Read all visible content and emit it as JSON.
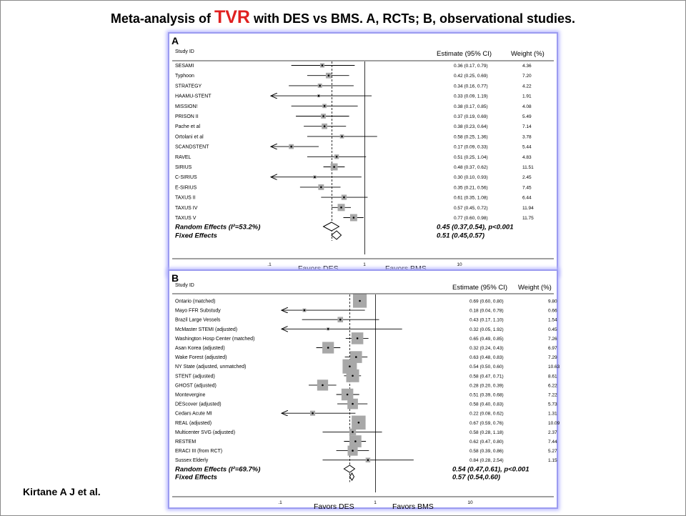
{
  "title": {
    "prefix": "Meta-analysis of ",
    "highlight": "TVR",
    "suffix": " with DES vs BMS. A, RCTs; B, observational studies."
  },
  "footer": {
    "author": "Kirtane A J et al."
  },
  "colors": {
    "highlight": "#e02020",
    "panel_border": "#9b9bf0",
    "box": "#a8a8a8"
  },
  "chart_data": [
    {
      "type": "forest",
      "panel_label": "A",
      "col_study": "Study ID",
      "col_estimate": "Estimate (95% CI)",
      "col_weight": "Weight (%)",
      "scale": "log",
      "ticks": [
        {
          "v": 0.1,
          "label": ".1"
        },
        {
          "v": 1,
          "label": "1"
        },
        {
          "v": 10,
          "label": "10"
        }
      ],
      "favors_left": "Favors DES",
      "favors_right": "Favors BMS",
      "studies": [
        {
          "name": "SESAMI",
          "est": 0.36,
          "lo": 0.17,
          "hi": 0.79,
          "text": "0.36 (0.17, 0.79)",
          "weight": "4.36"
        },
        {
          "name": "Typhoon",
          "est": 0.42,
          "lo": 0.25,
          "hi": 0.69,
          "text": "0.42 (0.25, 0.69)",
          "weight": "7.20"
        },
        {
          "name": "STRATEGY",
          "est": 0.34,
          "lo": 0.16,
          "hi": 0.77,
          "text": "0.34 (0.16, 0.77)",
          "weight": "4.22"
        },
        {
          "name": "HAAMU-STENT",
          "est": 0.33,
          "lo": 0.09,
          "hi": 1.19,
          "text": "0.33 (0.09, 1.19)",
          "weight": "1.91"
        },
        {
          "name": "MISSION!",
          "est": 0.38,
          "lo": 0.17,
          "hi": 0.85,
          "text": "0.38 (0.17, 0.85)",
          "weight": "4.08"
        },
        {
          "name": "PRISON II",
          "est": 0.37,
          "lo": 0.19,
          "hi": 0.69,
          "text": "0.37 (0.19, 0.69)",
          "weight": "5.49"
        },
        {
          "name": "Pache et al",
          "est": 0.38,
          "lo": 0.23,
          "hi": 0.64,
          "text": "0.38 (0.23, 0.64)",
          "weight": "7.14"
        },
        {
          "name": "Ortolani et al",
          "est": 0.58,
          "lo": 0.25,
          "hi": 1.36,
          "text": "0.58 (0.25, 1.36)",
          "weight": "3.78"
        },
        {
          "name": "SCANDSTENT",
          "est": 0.17,
          "lo": 0.09,
          "hi": 0.33,
          "text": "0.17 (0.09, 0.33)",
          "weight": "5.44"
        },
        {
          "name": "RAVEL",
          "est": 0.51,
          "lo": 0.25,
          "hi": 1.04,
          "text": "0.51 (0.25, 1.04)",
          "weight": "4.83"
        },
        {
          "name": "SIRIUS",
          "est": 0.48,
          "lo": 0.37,
          "hi": 0.62,
          "text": "0.48 (0.37, 0.62)",
          "weight": "11.51"
        },
        {
          "name": "C-SIRIUS",
          "est": 0.3,
          "lo": 0.1,
          "hi": 0.93,
          "text": "0.30 (0.10, 0.93)",
          "weight": "2.45"
        },
        {
          "name": "E-SIRIUS",
          "est": 0.35,
          "lo": 0.21,
          "hi": 0.56,
          "text": "0.35 (0.21, 0.56)",
          "weight": "7.45"
        },
        {
          "name": "TAXUS II",
          "est": 0.61,
          "lo": 0.35,
          "hi": 1.08,
          "text": "0.61 (0.35, 1.08)",
          "weight": "6.44"
        },
        {
          "name": "TAXUS IV",
          "est": 0.57,
          "lo": 0.45,
          "hi": 0.72,
          "text": "0.57 (0.45, 0.72)",
          "weight": "11.94"
        },
        {
          "name": "TAXUS V",
          "est": 0.77,
          "lo": 0.6,
          "hi": 0.98,
          "text": "0.77 (0.60, 0.98)",
          "weight": "11.75"
        }
      ],
      "summaries": [
        {
          "name": "Random Effects (I²=53.2%)",
          "est": 0.45,
          "lo": 0.37,
          "hi": 0.54,
          "text": "0.45 (0.37,0.54), p<0.001"
        },
        {
          "name": "Fixed Effects",
          "est": 0.51,
          "lo": 0.45,
          "hi": 0.57,
          "text": "0.51 (0.45,0.57)"
        }
      ]
    },
    {
      "type": "forest",
      "panel_label": "B",
      "col_study": "Study ID",
      "col_estimate": "Estimate (95% CI)",
      "col_weight": "Weight (%)",
      "scale": "log",
      "ticks": [
        {
          "v": 0.1,
          "label": ".1"
        },
        {
          "v": 1,
          "label": "1"
        },
        {
          "v": 10,
          "label": "10"
        }
      ],
      "favors_left": "Favors DES",
      "favors_right": "Favors BMS",
      "studies": [
        {
          "name": "Ontario (matched)",
          "est": 0.69,
          "lo": 0.6,
          "hi": 0.8,
          "text": "0.69 (0.60, 0.80)",
          "weight": "9.80"
        },
        {
          "name": "Mayo FFR Substudy",
          "est": 0.18,
          "lo": 0.04,
          "hi": 0.78,
          "text": "0.18 (0.04, 0.78)",
          "weight": "0.66"
        },
        {
          "name": "Brazil Large Vessels",
          "est": 0.43,
          "lo": 0.17,
          "hi": 1.1,
          "text": "0.43 (0.17, 1.10)",
          "weight": "1.54"
        },
        {
          "name": "McMaster STEMI (adjusted)",
          "est": 0.32,
          "lo": 0.05,
          "hi": 1.92,
          "text": "0.32 (0.05, 1.92)",
          "weight": "0.45"
        },
        {
          "name": "Washington Hosp Center (matched)",
          "est": 0.65,
          "lo": 0.49,
          "hi": 0.85,
          "text": "0.65 (0.49, 0.85)",
          "weight": "7.26"
        },
        {
          "name": "Asan Korea (adjusted)",
          "est": 0.32,
          "lo": 0.24,
          "hi": 0.43,
          "text": "0.32 (0.24, 0.43)",
          "weight": "6.97"
        },
        {
          "name": "Wake Forest (adjusted)",
          "est": 0.63,
          "lo": 0.48,
          "hi": 0.83,
          "text": "0.63 (0.48, 0.83)",
          "weight": "7.29"
        },
        {
          "name": "NY State (adjusted, unmatched)",
          "est": 0.54,
          "lo": 0.5,
          "hi": 0.6,
          "text": "0.54 (0.50, 0.60)",
          "weight": "10.63"
        },
        {
          "name": "STENT (adjusted)",
          "est": 0.58,
          "lo": 0.47,
          "hi": 0.71,
          "text": "0.58 (0.47, 0.71)",
          "weight": "8.61"
        },
        {
          "name": "GHOST (adjusted)",
          "est": 0.28,
          "lo": 0.2,
          "hi": 0.39,
          "text": "0.28 (0.20, 0.39)",
          "weight": "6.22"
        },
        {
          "name": "Montevergine",
          "est": 0.51,
          "lo": 0.39,
          "hi": 0.68,
          "text": "0.51 (0.39, 0.68)",
          "weight": "7.22"
        },
        {
          "name": "DEScover (adjusted)",
          "est": 0.58,
          "lo": 0.4,
          "hi": 0.83,
          "text": "0.58 (0.40, 0.83)",
          "weight": "5.73"
        },
        {
          "name": "Cedars Acute MI",
          "est": 0.22,
          "lo": 0.08,
          "hi": 0.62,
          "text": "0.22 (0.08, 0.62)",
          "weight": "1.31"
        },
        {
          "name": "REAL (adjusted)",
          "est": 0.67,
          "lo": 0.59,
          "hi": 0.76,
          "text": "0.67 (0.59, 0.76)",
          "weight": "10.09"
        },
        {
          "name": "Multicenter SVG (adjusted)",
          "est": 0.58,
          "lo": 0.28,
          "hi": 1.18,
          "text": "0.58 (0.28, 1.18)",
          "weight": "2.37"
        },
        {
          "name": "RESTEM",
          "est": 0.62,
          "lo": 0.47,
          "hi": 0.8,
          "text": "0.62 (0.47, 0.80)",
          "weight": "7.44"
        },
        {
          "name": "ERACI III (from RCT)",
          "est": 0.58,
          "lo": 0.39,
          "hi": 0.86,
          "text": "0.58 (0.39, 0.86)",
          "weight": "5.27"
        },
        {
          "name": "Sussex Elderly",
          "est": 0.84,
          "lo": 0.28,
          "hi": 2.54,
          "text": "0.84 (0.28, 2.54)",
          "weight": "1.15"
        }
      ],
      "summaries": [
        {
          "name": "Random Effects (I²=69.7%)",
          "est": 0.54,
          "lo": 0.47,
          "hi": 0.61,
          "text": "0.54 (0.47,0.61), p<0.001"
        },
        {
          "name": "Fixed Effects",
          "est": 0.57,
          "lo": 0.54,
          "hi": 0.6,
          "text": "0.57 (0.54,0.60)"
        }
      ]
    }
  ]
}
